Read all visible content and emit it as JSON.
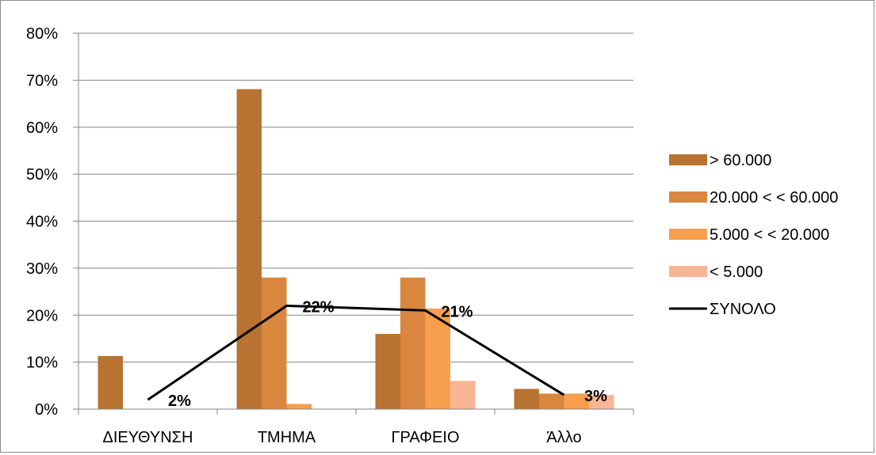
{
  "chart_data": {
    "type": "bar",
    "title": "",
    "xlabel": "",
    "ylabel": "",
    "categories": [
      "ΔΙΕΥΘΥΝΣΗ",
      "ΤΜΗΜΑ",
      "ΓΡΑΦΕΙΟ",
      "Άλλο"
    ],
    "ylim": [
      0,
      80
    ],
    "y_ticks": [
      "0%",
      "10%",
      "20%",
      "30%",
      "40%",
      "50%",
      "60%",
      "70%",
      "80%"
    ],
    "y_unit": "%",
    "grid": true,
    "legend_position": "right",
    "series": [
      {
        "name": "> 60.000",
        "type": "bar",
        "color": "#B87333",
        "values": [
          11.3,
          68.1,
          16.0,
          4.3
        ]
      },
      {
        "name": "20.000 < < 60.000",
        "type": "bar",
        "color": "#D9863F",
        "values": [
          0,
          28.0,
          28.0,
          3.3
        ]
      },
      {
        "name": "5.000 < < 20.000",
        "type": "bar",
        "color": "#F79E4F",
        "values": [
          0,
          1.1,
          21.4,
          3.3
        ]
      },
      {
        "name": "< 5.000",
        "type": "bar",
        "color": "#F8B594",
        "values": [
          0,
          0,
          6.0,
          3.0
        ]
      },
      {
        "name": "ΣΥΝΟΛΟ",
        "type": "line",
        "color": "#000000",
        "values": [
          2,
          22,
          21,
          3
        ]
      }
    ],
    "line_labels": [
      "2%",
      "22%",
      "21%",
      "3%"
    ]
  }
}
